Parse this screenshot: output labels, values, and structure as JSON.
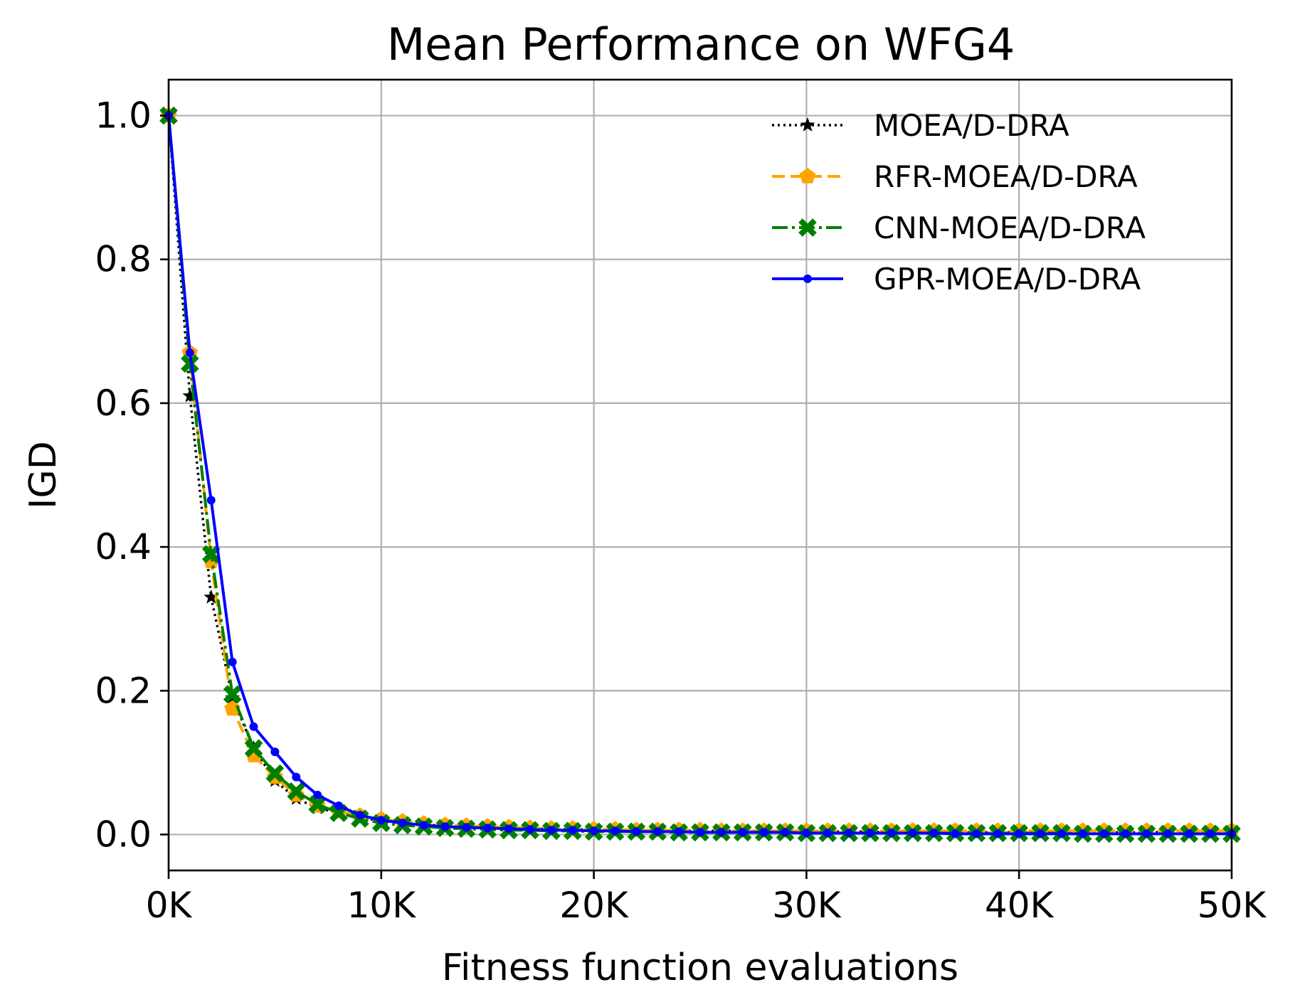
{
  "chart_data": {
    "type": "line",
    "title": "Mean Performance on WFG4",
    "xlabel": "Fitness function evaluations",
    "ylabel": "IGD",
    "xlim": [
      0,
      50000
    ],
    "ylim": [
      -0.05,
      1.05
    ],
    "xticks": [
      0,
      10000,
      20000,
      30000,
      40000,
      50000
    ],
    "xtick_labels": [
      "0K",
      "10K",
      "20K",
      "30K",
      "40K",
      "50K"
    ],
    "yticks": [
      0.0,
      0.2,
      0.4,
      0.6,
      0.8,
      1.0
    ],
    "ytick_labels": [
      "0.0",
      "0.2",
      "0.4",
      "0.6",
      "0.8",
      "1.0"
    ],
    "grid": true,
    "legend_position": "top-right",
    "x": [
      0,
      1000,
      2000,
      3000,
      4000,
      5000,
      6000,
      7000,
      8000,
      9000,
      10000,
      11000,
      12000,
      13000,
      14000,
      15000,
      16000,
      17000,
      18000,
      19000,
      20000,
      21000,
      22000,
      23000,
      24000,
      25000,
      26000,
      27000,
      28000,
      29000,
      30000,
      31000,
      32000,
      33000,
      34000,
      35000,
      36000,
      37000,
      38000,
      39000,
      40000,
      41000,
      42000,
      43000,
      44000,
      45000,
      46000,
      47000,
      48000,
      49000,
      50000
    ],
    "series": [
      {
        "name": "MOEA/D-DRA",
        "color": "#000000",
        "line_style": "dotted",
        "marker": "star",
        "values": [
          1.0,
          0.61,
          0.33,
          0.19,
          0.12,
          0.075,
          0.05,
          0.037,
          0.03,
          0.024,
          0.019,
          0.016,
          0.014,
          0.012,
          0.011,
          0.01,
          0.009,
          0.008,
          0.008,
          0.007,
          0.007,
          0.006,
          0.006,
          0.006,
          0.005,
          0.005,
          0.005,
          0.005,
          0.004,
          0.004,
          0.004,
          0.004,
          0.004,
          0.004,
          0.003,
          0.003,
          0.003,
          0.003,
          0.003,
          0.003,
          0.003,
          0.003,
          0.003,
          0.003,
          0.003,
          0.003,
          0.003,
          0.003,
          0.003,
          0.003,
          0.003
        ]
      },
      {
        "name": "RFR-MOEA/D-DRA",
        "color": "#ffa500",
        "line_style": "dashed",
        "marker": "pentagon",
        "values": [
          1.0,
          0.67,
          0.38,
          0.175,
          0.11,
          0.08,
          0.055,
          0.04,
          0.032,
          0.026,
          0.021,
          0.018,
          0.015,
          0.013,
          0.012,
          0.011,
          0.01,
          0.009,
          0.008,
          0.008,
          0.007,
          0.007,
          0.006,
          0.006,
          0.006,
          0.006,
          0.005,
          0.005,
          0.005,
          0.005,
          0.005,
          0.005,
          0.005,
          0.005,
          0.005,
          0.005,
          0.005,
          0.005,
          0.005,
          0.005,
          0.005,
          0.005,
          0.005,
          0.005,
          0.005,
          0.005,
          0.005,
          0.005,
          0.005,
          0.005,
          0.005
        ]
      },
      {
        "name": "CNN-MOEA/D-DRA",
        "color": "#008000",
        "line_style": "dashdot",
        "marker": "x",
        "values": [
          1.0,
          0.655,
          0.39,
          0.195,
          0.12,
          0.085,
          0.06,
          0.042,
          0.03,
          0.022,
          0.016,
          0.013,
          0.011,
          0.009,
          0.008,
          0.007,
          0.006,
          0.006,
          0.005,
          0.005,
          0.004,
          0.004,
          0.004,
          0.004,
          0.003,
          0.003,
          0.003,
          0.003,
          0.003,
          0.003,
          0.002,
          0.002,
          0.002,
          0.002,
          0.002,
          0.002,
          0.002,
          0.002,
          0.002,
          0.002,
          0.002,
          0.002,
          0.002,
          0.001,
          0.001,
          0.001,
          0.001,
          0.001,
          0.001,
          0.001,
          0.001
        ]
      },
      {
        "name": "GPR-MOEA/D-DRA",
        "color": "#0000ff",
        "line_style": "solid",
        "marker": "dot",
        "values": [
          1.0,
          0.67,
          0.465,
          0.24,
          0.15,
          0.115,
          0.08,
          0.055,
          0.04,
          0.027,
          0.02,
          0.016,
          0.013,
          0.011,
          0.01,
          0.009,
          0.008,
          0.007,
          0.006,
          0.006,
          0.005,
          0.005,
          0.004,
          0.004,
          0.004,
          0.003,
          0.003,
          0.003,
          0.003,
          0.003,
          0.002,
          0.002,
          0.002,
          0.002,
          0.002,
          0.002,
          0.002,
          0.001,
          0.001,
          0.001,
          0.001,
          0.001,
          0.001,
          0.001,
          0.001,
          0.001,
          0.001,
          0.001,
          0.001,
          0.001,
          0.001
        ]
      }
    ]
  }
}
